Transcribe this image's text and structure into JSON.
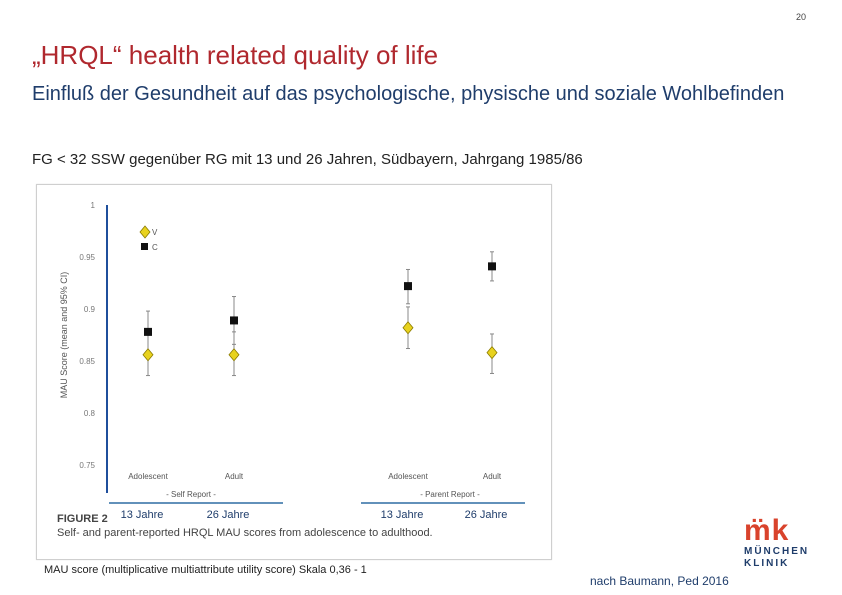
{
  "page_number": "20",
  "title": "„HRQL“ health related quality of life",
  "subtitle": "Einfluß der Gesundheit auf das psychologische, physische und soziale Wohlbefinden",
  "note": "FG < 32 SSW gegenüber RG mit 13 und 26 Jahren, Südbayern, Jahrgang 1985/86",
  "figure": {
    "label": "FIGURE 2",
    "caption": "Self- and parent-reported HRQL MAU scores from adolescence to adulthood."
  },
  "footnote": "MAU score  (multiplicative multiattribute utility score) Skala 0,36 - 1",
  "source": "nach Baumann, Ped 2016",
  "logo": {
    "mark": "m̈k",
    "line1": "MÜNCHEN",
    "line2": "KLINIK",
    "color": "#d9432c",
    "text_color": "#1f3d6b"
  },
  "chart_data": {
    "type": "scatter",
    "ylabel": "MAU Score (mean and 95% CI)",
    "ylim": [
      0.75,
      1.0
    ],
    "yticks": [
      "1",
      "0.95",
      "0.9",
      "0.85",
      "0.8",
      "0.75"
    ],
    "categories": [
      "Adolescent",
      "Adult",
      "Adolescent",
      "Adult"
    ],
    "groups": [
      "- Self Report -",
      "- Parent Report -"
    ],
    "age_labels": [
      "13 Jahre",
      "26 Jahre",
      "13 Jahre",
      "26 Jahre"
    ],
    "legend": [
      "V",
      "C"
    ],
    "series": [
      {
        "name": "V",
        "marker": "diamond",
        "color": "#e8d21e",
        "values": [
          0.856,
          0.856,
          0.882,
          0.858
        ],
        "ci_low": [
          0.836,
          0.836,
          0.862,
          0.838
        ],
        "ci_high": [
          0.878,
          0.878,
          0.902,
          0.876
        ]
      },
      {
        "name": "C",
        "marker": "square",
        "color": "#111111",
        "values": [
          0.878,
          0.889,
          0.922,
          0.941
        ],
        "ci_low": [
          0.856,
          0.866,
          0.905,
          0.927
        ],
        "ci_high": [
          0.898,
          0.912,
          0.938,
          0.955
        ]
      }
    ],
    "accent_line_color": "#2e6da4"
  }
}
